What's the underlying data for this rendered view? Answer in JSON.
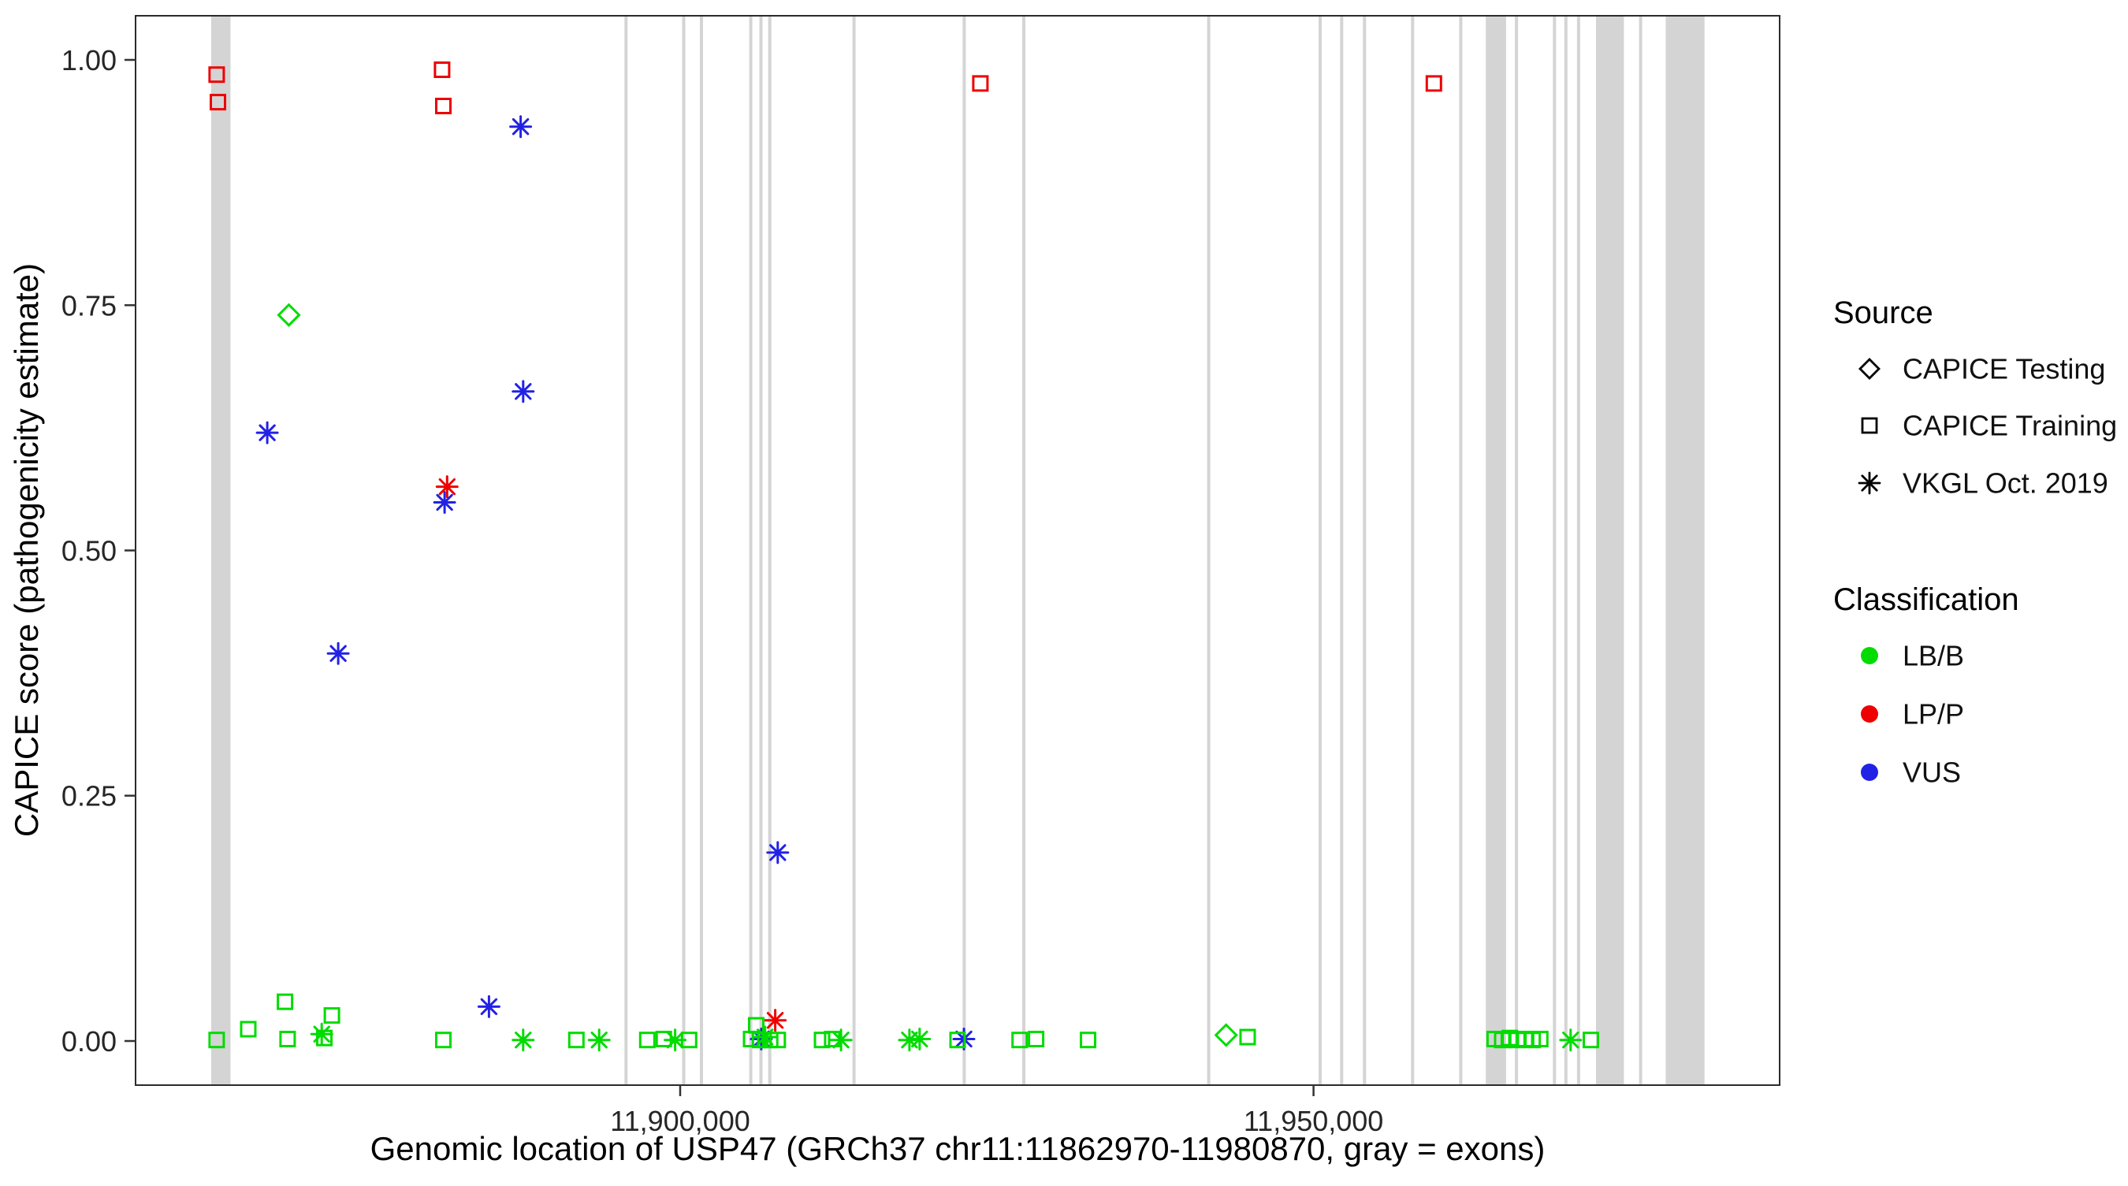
{
  "chart_data": {
    "type": "scatter",
    "title": "",
    "xlabel": "Genomic location of USP47 (GRCh37 chr11:11862970-11980870, gray = exons)",
    "ylabel": "CAPICE score (pathogenicity estimate)",
    "xlim": [
      11857000,
      11986800
    ],
    "ylim": [
      -0.045,
      1.045
    ],
    "grid": false,
    "legend_position": "right",
    "exon_color": "#D4D4D4",
    "x_ticks": [
      {
        "value": 11900000,
        "label": "11,900,000"
      },
      {
        "value": 11950000,
        "label": "11,950,000"
      }
    ],
    "y_ticks": [
      {
        "value": 0.0,
        "label": "0.00"
      },
      {
        "value": 0.25,
        "label": "0.25"
      },
      {
        "value": 0.5,
        "label": "0.50"
      },
      {
        "value": 0.75,
        "label": "0.75"
      },
      {
        "value": 1.0,
        "label": "1.00"
      }
    ],
    "legend": {
      "source": {
        "title": "Source",
        "items": [
          {
            "label": "CAPICE Testing",
            "marker": "diamond"
          },
          {
            "label": "CAPICE Training",
            "marker": "square"
          },
          {
            "label": "VKGL Oct. 2019",
            "marker": "asterisk"
          }
        ]
      },
      "classification": {
        "title": "Classification",
        "items": [
          {
            "label": "LB/B",
            "color": "#00DC00"
          },
          {
            "label": "LP/P",
            "color": "#EE0000"
          },
          {
            "label": "VUS",
            "color": "#2222E6"
          }
        ]
      }
    },
    "source_markers": {
      "CAPICE Testing": "diamond",
      "CAPICE Training": "square",
      "VKGL Oct. 2019": "asterisk"
    },
    "classification_colors": {
      "LB/B": "#00DC00",
      "LP/P": "#EE0000",
      "VUS": "#2222E6"
    },
    "exons": [
      [
        11862970,
        11864500
      ],
      [
        11895600,
        11895850
      ],
      [
        11900150,
        11900400
      ],
      [
        11901550,
        11901800
      ],
      [
        11905450,
        11905700
      ],
      [
        11906250,
        11906500
      ],
      [
        11906950,
        11907200
      ],
      [
        11913600,
        11913850
      ],
      [
        11922300,
        11922550
      ],
      [
        11927000,
        11927250
      ],
      [
        11941600,
        11941850
      ],
      [
        11950400,
        11950650
      ],
      [
        11952100,
        11952350
      ],
      [
        11953900,
        11954150
      ],
      [
        11957700,
        11957950
      ],
      [
        11961500,
        11961750
      ],
      [
        11963600,
        11965200
      ],
      [
        11965900,
        11966150
      ],
      [
        11968900,
        11969150
      ],
      [
        11969800,
        11970050
      ],
      [
        11970800,
        11971050
      ],
      [
        11972300,
        11974500
      ],
      [
        11975700,
        11975950
      ],
      [
        11977800,
        11980870
      ]
    ],
    "points": [
      {
        "x": 11863400,
        "y": 0.985,
        "source": "CAPICE Training",
        "classification": "LP/P"
      },
      {
        "x": 11863500,
        "y": 0.957,
        "source": "CAPICE Training",
        "classification": "LP/P"
      },
      {
        "x": 11881200,
        "y": 0.99,
        "source": "CAPICE Training",
        "classification": "LP/P"
      },
      {
        "x": 11881300,
        "y": 0.953,
        "source": "CAPICE Training",
        "classification": "LP/P"
      },
      {
        "x": 11923700,
        "y": 0.976,
        "source": "CAPICE Training",
        "classification": "LP/P"
      },
      {
        "x": 11959500,
        "y": 0.976,
        "source": "CAPICE Training",
        "classification": "LP/P"
      },
      {
        "x": 11881600,
        "y": 0.565,
        "source": "VKGL Oct. 2019",
        "classification": "LP/P"
      },
      {
        "x": 11907500,
        "y": 0.021,
        "source": "VKGL Oct. 2019",
        "classification": "LP/P"
      },
      {
        "x": 11887400,
        "y": 0.932,
        "source": "VKGL Oct. 2019",
        "classification": "VUS"
      },
      {
        "x": 11887600,
        "y": 0.662,
        "source": "VKGL Oct. 2019",
        "classification": "VUS"
      },
      {
        "x": 11867400,
        "y": 0.62,
        "source": "VKGL Oct. 2019",
        "classification": "VUS"
      },
      {
        "x": 11881400,
        "y": 0.549,
        "source": "VKGL Oct. 2019",
        "classification": "VUS"
      },
      {
        "x": 11873000,
        "y": 0.395,
        "source": "VKGL Oct. 2019",
        "classification": "VUS"
      },
      {
        "x": 11907700,
        "y": 0.192,
        "source": "VKGL Oct. 2019",
        "classification": "VUS"
      },
      {
        "x": 11884900,
        "y": 0.035,
        "source": "VKGL Oct. 2019",
        "classification": "VUS"
      },
      {
        "x": 11922400,
        "y": 0.002,
        "source": "VKGL Oct. 2019",
        "classification": "VUS"
      },
      {
        "x": 11906400,
        "y": 0.002,
        "source": "VKGL Oct. 2019",
        "classification": "VUS"
      },
      {
        "x": 11869100,
        "y": 0.74,
        "source": "CAPICE Testing",
        "classification": "LB/B"
      },
      {
        "x": 11943100,
        "y": 0.006,
        "source": "CAPICE Testing",
        "classification": "LB/B"
      },
      {
        "x": 11863400,
        "y": 0.001,
        "source": "CAPICE Training",
        "classification": "LB/B"
      },
      {
        "x": 11865900,
        "y": 0.012,
        "source": "CAPICE Training",
        "classification": "LB/B"
      },
      {
        "x": 11868800,
        "y": 0.04,
        "source": "CAPICE Training",
        "classification": "LB/B"
      },
      {
        "x": 11869000,
        "y": 0.002,
        "source": "CAPICE Training",
        "classification": "LB/B"
      },
      {
        "x": 11871700,
        "y": 0.007,
        "source": "VKGL Oct. 2019",
        "classification": "LB/B"
      },
      {
        "x": 11871900,
        "y": 0.003,
        "source": "CAPICE Training",
        "classification": "LB/B"
      },
      {
        "x": 11872500,
        "y": 0.026,
        "source": "CAPICE Training",
        "classification": "LB/B"
      },
      {
        "x": 11881300,
        "y": 0.001,
        "source": "CAPICE Training",
        "classification": "LB/B"
      },
      {
        "x": 11887600,
        "y": 0.001,
        "source": "VKGL Oct. 2019",
        "classification": "LB/B"
      },
      {
        "x": 11891800,
        "y": 0.001,
        "source": "CAPICE Training",
        "classification": "LB/B"
      },
      {
        "x": 11893600,
        "y": 0.001,
        "source": "VKGL Oct. 2019",
        "classification": "LB/B"
      },
      {
        "x": 11897400,
        "y": 0.001,
        "source": "CAPICE Training",
        "classification": "LB/B"
      },
      {
        "x": 11898700,
        "y": 0.002,
        "source": "CAPICE Training",
        "classification": "LB/B"
      },
      {
        "x": 11899600,
        "y": 0.001,
        "source": "VKGL Oct. 2019",
        "classification": "LB/B"
      },
      {
        "x": 11900700,
        "y": 0.001,
        "source": "CAPICE Training",
        "classification": "LB/B"
      },
      {
        "x": 11905600,
        "y": 0.002,
        "source": "CAPICE Training",
        "classification": "LB/B"
      },
      {
        "x": 11906000,
        "y": 0.016,
        "source": "CAPICE Training",
        "classification": "LB/B"
      },
      {
        "x": 11906300,
        "y": 0.001,
        "source": "CAPICE Training",
        "classification": "LB/B"
      },
      {
        "x": 11906700,
        "y": 0.004,
        "source": "VKGL Oct. 2019",
        "classification": "LB/B"
      },
      {
        "x": 11907100,
        "y": 0.001,
        "source": "CAPICE Training",
        "classification": "LB/B"
      },
      {
        "x": 11907700,
        "y": 0.001,
        "source": "CAPICE Training",
        "classification": "LB/B"
      },
      {
        "x": 11911200,
        "y": 0.001,
        "source": "CAPICE Training",
        "classification": "LB/B"
      },
      {
        "x": 11912000,
        "y": 0.002,
        "source": "CAPICE Training",
        "classification": "LB/B"
      },
      {
        "x": 11912700,
        "y": 0.001,
        "source": "VKGL Oct. 2019",
        "classification": "LB/B"
      },
      {
        "x": 11918100,
        "y": 0.001,
        "source": "VKGL Oct. 2019",
        "classification": "LB/B"
      },
      {
        "x": 11918900,
        "y": 0.002,
        "source": "VKGL Oct. 2019",
        "classification": "LB/B"
      },
      {
        "x": 11921900,
        "y": 0.001,
        "source": "CAPICE Training",
        "classification": "LB/B"
      },
      {
        "x": 11926800,
        "y": 0.001,
        "source": "CAPICE Training",
        "classification": "LB/B"
      },
      {
        "x": 11928100,
        "y": 0.002,
        "source": "CAPICE Training",
        "classification": "LB/B"
      },
      {
        "x": 11932200,
        "y": 0.001,
        "source": "CAPICE Training",
        "classification": "LB/B"
      },
      {
        "x": 11944800,
        "y": 0.004,
        "source": "CAPICE Training",
        "classification": "LB/B"
      },
      {
        "x": 11964300,
        "y": 0.002,
        "source": "CAPICE Training",
        "classification": "LB/B"
      },
      {
        "x": 11964900,
        "y": 0.001,
        "source": "CAPICE Training",
        "classification": "LB/B"
      },
      {
        "x": 11965500,
        "y": 0.003,
        "source": "CAPICE Training",
        "classification": "LB/B"
      },
      {
        "x": 11966100,
        "y": 0.001,
        "source": "CAPICE Training",
        "classification": "LB/B"
      },
      {
        "x": 11966700,
        "y": 0.002,
        "source": "CAPICE Training",
        "classification": "LB/B"
      },
      {
        "x": 11967300,
        "y": 0.001,
        "source": "CAPICE Training",
        "classification": "LB/B"
      },
      {
        "x": 11967900,
        "y": 0.002,
        "source": "CAPICE Training",
        "classification": "LB/B"
      },
      {
        "x": 11970300,
        "y": 0.001,
        "source": "VKGL Oct. 2019",
        "classification": "LB/B"
      },
      {
        "x": 11971900,
        "y": 0.001,
        "source": "CAPICE Training",
        "classification": "LB/B"
      }
    ]
  }
}
